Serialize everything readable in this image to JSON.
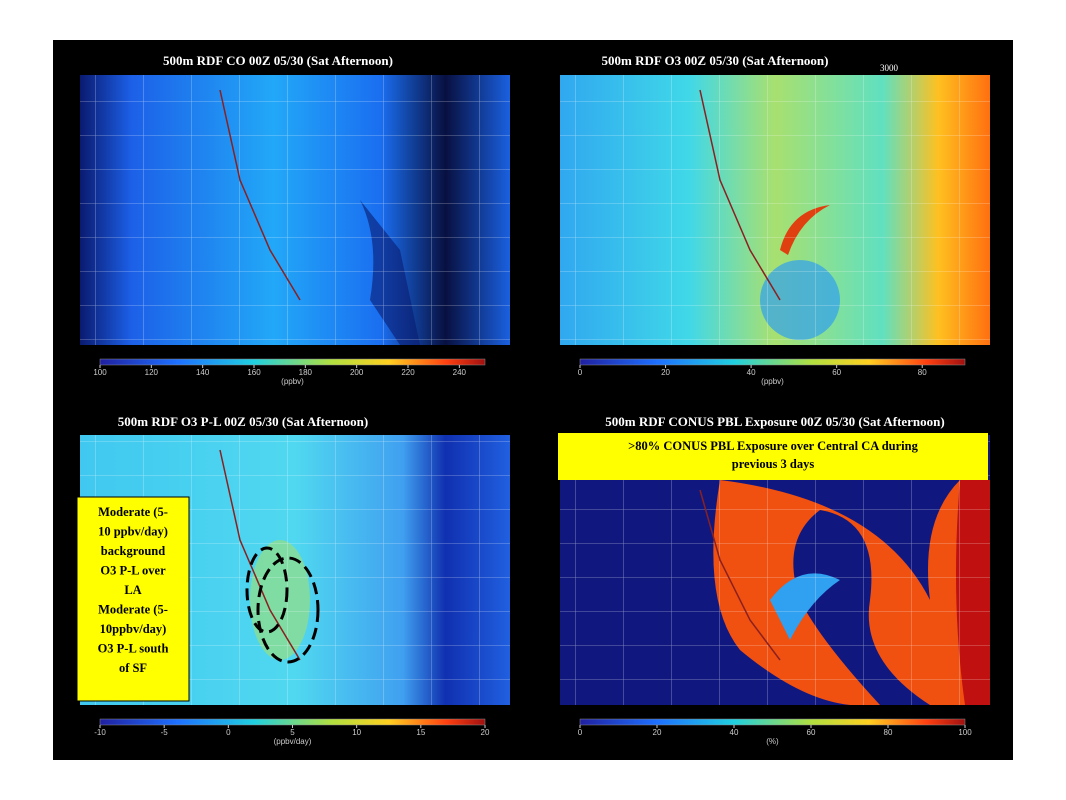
{
  "panels": [
    {
      "title": "500m RDF CO  00Z 05/30 (Sat Afternoon)",
      "colorbar": {
        "lim": [
          100,
          250
        ],
        "ticks": [
          100,
          120,
          140,
          160,
          180,
          200,
          220,
          240
        ],
        "unit": "(ppbv)"
      }
    },
    {
      "title": "500m RDF O3 00Z 05/30 (Sat Afternoon)",
      "contour_label": "3000",
      "colorbar": {
        "lim": [
          0,
          90
        ],
        "ticks": [
          0,
          20,
          40,
          60,
          80
        ],
        "unit": "(ppbv)"
      }
    },
    {
      "title": "500m RDF O3 P-L  00Z 05/30 (Sat Afternoon)",
      "annotation": [
        "Moderate (5-",
        "10 ppbv/day)",
        "background",
        "O3 P-L over",
        "LA",
        "Moderate (5-",
        "10ppbv/day)",
        "O3 P-L south",
        "of  SF"
      ],
      "colorbar": {
        "lim": [
          -10,
          20
        ],
        "ticks": [
          -10,
          -5,
          0,
          5,
          10,
          15,
          20
        ],
        "unit": "(ppbv/day)"
      }
    },
    {
      "title": "500m RDF CONUS PBL Exposure 00Z 05/30 (Sat Afternoon)",
      "annotation": [
        ">80% CONUS PBL Exposure over Central CA during",
        "previous 3 days"
      ],
      "colorbar": {
        "lim": [
          0,
          100
        ],
        "ticks": [
          0,
          20,
          40,
          60,
          80,
          100
        ],
        "unit": "(%)"
      }
    }
  ]
}
